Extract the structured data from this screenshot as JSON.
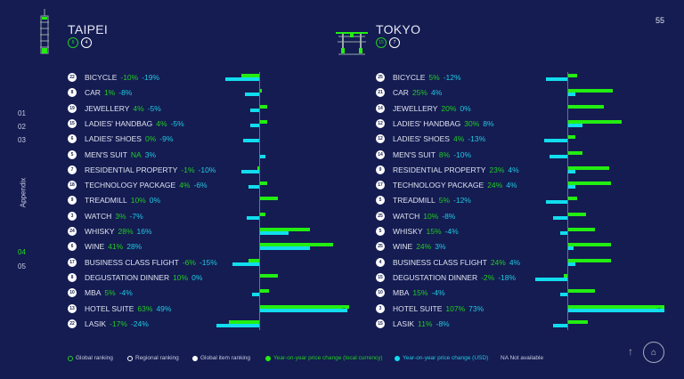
{
  "page_number": "55",
  "nav": {
    "items": [
      "01",
      "02",
      "03",
      "04",
      "05"
    ],
    "active": "04",
    "section": "Appendix"
  },
  "colors": {
    "local": "#22ee11",
    "usd": "#11ddee",
    "background": "#141c52"
  },
  "cities": [
    {
      "name": "TAIPEI",
      "global_rank": "8",
      "regional_rank": "4",
      "icon": "taipei-101-tower-icon",
      "items": [
        {
          "rank": "22",
          "label": "BICYCLE",
          "local": "-10%",
          "usd": "-19%",
          "lv": -10,
          "uv": -19
        },
        {
          "rank": "8",
          "label": "CAR",
          "local": "1%",
          "usd": "-8%",
          "lv": 1,
          "uv": -8
        },
        {
          "rank": "19",
          "label": "JEWELLERY",
          "local": "4%",
          "usd": "-5%",
          "lv": 4,
          "uv": -5
        },
        {
          "rank": "15",
          "label": "LADIES' HANDBAG",
          "local": "4%",
          "usd": "-5%",
          "lv": 4,
          "uv": -5
        },
        {
          "rank": "6",
          "label": "LADIES' SHOES",
          "local": "0%",
          "usd": "-9%",
          "lv": 0,
          "uv": -9
        },
        {
          "rank": "5",
          "label": "MEN'S SUIT",
          "local": "NA",
          "usd": "3%",
          "lv": 0,
          "uv": 3
        },
        {
          "rank": "7",
          "label": "RESIDENTIAL PROPERTY",
          "local": "-1%",
          "usd": "-10%",
          "lv": -1,
          "uv": -10
        },
        {
          "rank": "18",
          "label": "TECHNOLOGY PACKAGE",
          "local": "4%",
          "usd": "-6%",
          "lv": 4,
          "uv": -6
        },
        {
          "rank": "9",
          "label": "TREADMILL",
          "local": "10%",
          "usd": "0%",
          "lv": 10,
          "uv": 0
        },
        {
          "rank": "3",
          "label": "WATCH",
          "local": "3%",
          "usd": "-7%",
          "lv": 3,
          "uv": -7
        },
        {
          "rank": "24",
          "label": "WHISKY",
          "local": "28%",
          "usd": "16%",
          "lv": 28,
          "uv": 16
        },
        {
          "rank": "6",
          "label": "WINE",
          "local": "41%",
          "usd": "28%",
          "lv": 41,
          "uv": 28
        },
        {
          "rank": "17",
          "label": "BUSINESS CLASS FLIGHT",
          "local": "-6%",
          "usd": "-15%",
          "lv": -6,
          "uv": -15
        },
        {
          "rank": "8",
          "label": "DEGUSTATION DINNER",
          "local": "10%",
          "usd": "0%",
          "lv": 10,
          "uv": 0
        },
        {
          "rank": "10",
          "label": "MBA",
          "local": "5%",
          "usd": "-4%",
          "lv": 5,
          "uv": -4
        },
        {
          "rank": "13",
          "label": "HOTEL SUITE",
          "local": "63%",
          "usd": "49%",
          "lv": 63,
          "uv": 49
        },
        {
          "rank": "22",
          "label": "LASIK",
          "local": "-17%",
          "usd": "-24%",
          "lv": -17,
          "uv": -24
        }
      ]
    },
    {
      "name": "TOKYO",
      "global_rank": "15",
      "regional_rank": "7",
      "icon": "torii-gate-icon",
      "items": [
        {
          "rank": "25",
          "label": "BICYCLE",
          "local": "5%",
          "usd": "-12%",
          "lv": 5,
          "uv": -12
        },
        {
          "rank": "21",
          "label": "CAR",
          "local": "25%",
          "usd": "4%",
          "lv": 25,
          "uv": 4
        },
        {
          "rank": "14",
          "label": "JEWELLERY",
          "local": "20%",
          "usd": "0%",
          "lv": 20,
          "uv": 0
        },
        {
          "rank": "12",
          "label": "LADIES' HANDBAG",
          "local": "30%",
          "usd": "8%",
          "lv": 30,
          "uv": 8
        },
        {
          "rank": "12",
          "label": "LADIES' SHOES",
          "local": "4%",
          "usd": "-13%",
          "lv": 4,
          "uv": -13
        },
        {
          "rank": "14",
          "label": "MEN'S SUIT",
          "local": "8%",
          "usd": "-10%",
          "lv": 8,
          "uv": -10
        },
        {
          "rank": "9",
          "label": "RESIDENTIAL PROPERTY",
          "local": "23%",
          "usd": "4%",
          "lv": 23,
          "uv": 4
        },
        {
          "rank": "17",
          "label": "TECHNOLOGY PACKAGE",
          "local": "24%",
          "usd": "4%",
          "lv": 24,
          "uv": 4
        },
        {
          "rank": "5",
          "label": "TREADMILL",
          "local": "5%",
          "usd": "-12%",
          "lv": 5,
          "uv": -12
        },
        {
          "rank": "25",
          "label": "WATCH",
          "local": "10%",
          "usd": "-8%",
          "lv": 10,
          "uv": -8
        },
        {
          "rank": "5",
          "label": "WHISKY",
          "local": "15%",
          "usd": "-4%",
          "lv": 15,
          "uv": -4
        },
        {
          "rank": "25",
          "label": "WINE",
          "local": "24%",
          "usd": "3%",
          "lv": 24,
          "uv": 3
        },
        {
          "rank": "4",
          "label": "BUSINESS CLASS FLIGHT",
          "local": "24%",
          "usd": "4%",
          "lv": 24,
          "uv": 4
        },
        {
          "rank": "15",
          "label": "DEGUSTATION DINNER",
          "local": "-2%",
          "usd": "-18%",
          "lv": -2,
          "uv": -18
        },
        {
          "rank": "10",
          "label": "MBA",
          "local": "15%",
          "usd": "-4%",
          "lv": 15,
          "uv": -4
        },
        {
          "rank": "3",
          "label": "HOTEL SUITE",
          "local": "107%",
          "usd": "73%",
          "lv": 107,
          "uv": 73
        },
        {
          "rank": "15",
          "label": "LASIK",
          "local": "11%",
          "usd": "-8%",
          "lv": 11,
          "uv": -8
        }
      ]
    }
  ],
  "legend": [
    {
      "label": "Global ranking",
      "style": "ring-green"
    },
    {
      "label": "Regional ranking",
      "style": "ring-white"
    },
    {
      "label": "Global item ranking",
      "style": "dot-white"
    },
    {
      "label": "Year-on-year price change (local currency)",
      "style": "dot-green"
    },
    {
      "label": "Year-on-year price change (USD)",
      "style": "dot-cyan"
    },
    {
      "label": "NA  Not available",
      "style": "text"
    }
  ]
}
